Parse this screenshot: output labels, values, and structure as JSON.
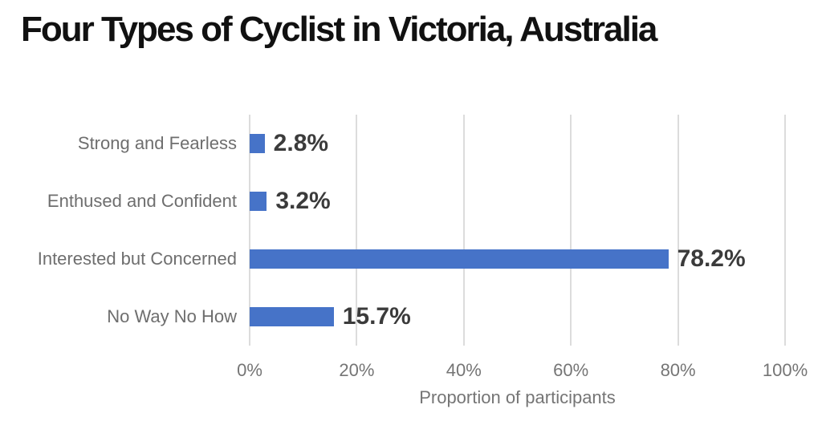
{
  "title": "Four Types of Cyclist in Victoria, Australia",
  "chart_data": {
    "type": "bar",
    "orientation": "horizontal",
    "title": "Four Types of Cyclist in Victoria, Australia",
    "categories": [
      "Strong and Fearless",
      "Enthused and Confident",
      "Interested but Concerned",
      "No Way No How"
    ],
    "values": [
      2.8,
      3.2,
      78.2,
      15.7
    ],
    "value_labels": [
      "2.8%",
      "3.2%",
      "78.2%",
      "15.7%"
    ],
    "xlabel": "Proportion of participants",
    "ylabel": "",
    "xlim": [
      0,
      100
    ],
    "x_ticks": [
      0,
      20,
      40,
      60,
      80,
      100
    ],
    "x_tick_labels": [
      "0%",
      "20%",
      "40%",
      "60%",
      "80%",
      "100%"
    ],
    "grid": "vertical",
    "legend_position": "none",
    "bar_color": "#4673c8"
  },
  "colors": {
    "background": "#ffffff",
    "bar": "#4673c8",
    "gridline": "#dcdcdc",
    "title_text": "#111111",
    "category_label": "#6e6e6e",
    "value_label": "#3b3b3b",
    "tick_label": "#757575",
    "axis_label": "#757575"
  }
}
